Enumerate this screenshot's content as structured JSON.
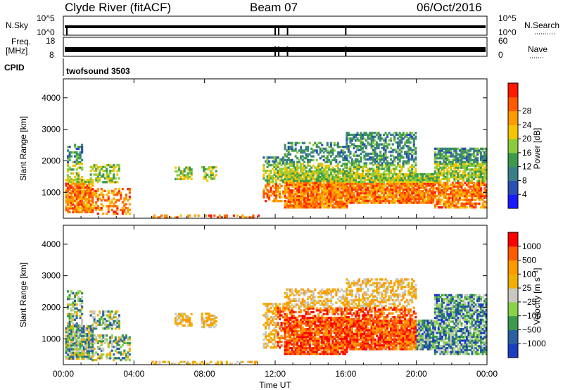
{
  "header": {
    "station": "Clyde River (fitACF)",
    "beam": "Beam 07",
    "date": "06/Oct/2016"
  },
  "panels": {
    "nsky_label": "N.Sky",
    "nsky_ticks": [
      "10^5",
      "10^0"
    ],
    "nsky_right_ticks": [
      "10^5",
      "10^0"
    ],
    "nsearch_label": "N.Search",
    "freq_label_1": "Freq.",
    "freq_label_2": "[MHz]",
    "freq_ticks": [
      "18",
      "8"
    ],
    "nave_ticks": [
      "60",
      "0"
    ],
    "nave_label": "Nave",
    "cpid_label": "CPID",
    "cpid_value": "twofsound 3503"
  },
  "colors": {
    "power": [
      "#1a1aff",
      "#2a4fb5",
      "#3a7f88",
      "#3d9a4d",
      "#8ccc3a",
      "#f5c400",
      "#ff9a00",
      "#ff5a00",
      "#ff1a00"
    ],
    "velocity": [
      "#ff0000",
      "#ff5a00",
      "#ff9a00",
      "#f0b000",
      "#c8c8c0",
      "#8ad14a",
      "#3a9a4d",
      "#2a5fa0",
      "#1a3fc0"
    ]
  },
  "chart_data": [
    {
      "type": "heatmap",
      "name": "power",
      "xlabel": "",
      "ylabel": "Slant Range [km]",
      "x_ticks": [
        "00:00",
        "04:00",
        "08:00",
        "12:00",
        "16:00",
        "20:00",
        "00:00"
      ],
      "y_ticks": [
        "1000",
        "2000",
        "3000",
        "4000"
      ],
      "xlim_hours": [
        0,
        24
      ],
      "ylim_km": [
        180,
        4600
      ],
      "colorbar_label": "Power [dB]",
      "colorbar_ticks": [
        "4",
        "8",
        "12",
        "16",
        "20",
        "24",
        "28"
      ],
      "colorbar_range": [
        0,
        32
      ]
    },
    {
      "type": "heatmap",
      "name": "velocity",
      "xlabel": "Time UT",
      "ylabel": "Slant Range [km]",
      "x_ticks": [
        "00:00",
        "04:00",
        "08:00",
        "12:00",
        "16:00",
        "20:00",
        "00:00"
      ],
      "y_ticks": [
        "1000",
        "2000",
        "3000",
        "4000"
      ],
      "xlim_hours": [
        0,
        24
      ],
      "ylim_km": [
        180,
        4600
      ],
      "colorbar_label": "Velocity [m s⁻¹]",
      "colorbar_ticks": [
        "1000",
        "500",
        "100",
        "25",
        "−25",
        "−100",
        "−500",
        "−1000"
      ]
    }
  ]
}
